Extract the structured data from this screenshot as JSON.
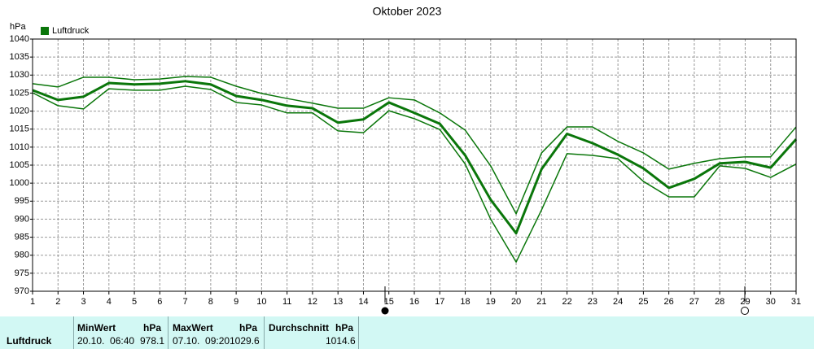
{
  "chart_data": {
    "type": "line",
    "title": "Oktober 2023",
    "y_label": "hPa",
    "legend": "upper left",
    "grid": true,
    "x": [
      1,
      2,
      3,
      4,
      5,
      6,
      7,
      8,
      9,
      10,
      11,
      12,
      13,
      14,
      15,
      16,
      17,
      18,
      19,
      20,
      21,
      22,
      23,
      24,
      25,
      26,
      27,
      28,
      29,
      30,
      31
    ],
    "xlim": [
      1,
      31
    ],
    "xticks": [
      1,
      2,
      3,
      4,
      5,
      6,
      7,
      8,
      9,
      10,
      11,
      12,
      13,
      14,
      15,
      16,
      17,
      18,
      19,
      20,
      21,
      22,
      23,
      24,
      25,
      26,
      27,
      28,
      29,
      30,
      31
    ],
    "ylim": [
      970,
      1040
    ],
    "yticks": [
      970,
      975,
      980,
      985,
      990,
      995,
      1000,
      1005,
      1010,
      1015,
      1020,
      1025,
      1030,
      1035,
      1040
    ],
    "series": [
      {
        "name": "Luftdruck",
        "color": "#0a760a",
        "width": 3,
        "values": [
          1025.8,
          1023.1,
          1024,
          1027.8,
          1027.4,
          1027.6,
          1028.3,
          1027.4,
          1024.2,
          1023.1,
          1021.5,
          1020.8,
          1016.8,
          1017.7,
          1022.4,
          1019.5,
          1016.5,
          1007.7,
          995.4,
          986.1,
          1003.9,
          1013.7,
          1011.1,
          1007.9,
          1004.1,
          998.7,
          1001.2,
          1005.5,
          1005.9,
          1004.3,
          1012.2
        ]
      },
      {
        "color": "#0a760a",
        "width": 1.5,
        "values": [
          1027.6,
          1026.7,
          1029.4,
          1029.4,
          1028.7,
          1028.9,
          1029.6,
          1029.4,
          1026.9,
          1024.9,
          1023.5,
          1022.2,
          1020.8,
          1020.8,
          1023.7,
          1023.1,
          1019.5,
          1014.7,
          1004.8,
          991.5,
          1008.4,
          1015.6,
          1015.6,
          1011.6,
          1008.4,
          1003.9,
          1005.5,
          1006.8,
          1007.3,
          1007.3,
          1015.6
        ]
      },
      {
        "color": "#0a760a",
        "width": 1.5,
        "values": [
          1025.1,
          1021.5,
          1020.6,
          1026.2,
          1025.8,
          1025.8,
          1026.9,
          1026,
          1022.4,
          1021.7,
          1019.5,
          1019.5,
          1014.5,
          1014,
          1020.1,
          1017.9,
          1014.9,
          1005.3,
          990,
          978.1,
          992.6,
          1008.2,
          1007.7,
          1006.8,
          1000.5,
          996.2,
          996.2,
          1004.8,
          1004.1,
          1001.6,
          1005.3
        ]
      }
    ]
  },
  "stats": {
    "row_label": "Luftdruck",
    "min": {
      "header": "MinWert",
      "unit": "hPa",
      "time": "20.10.  06:40",
      "value": 978.1
    },
    "max": {
      "header": "MaxWert",
      "unit": "hPa",
      "time": "07.10.  09:20",
      "value": 1029.6
    },
    "avg": {
      "header": "Durchschnitt",
      "unit": "hPa",
      "value": 1014.6
    }
  }
}
